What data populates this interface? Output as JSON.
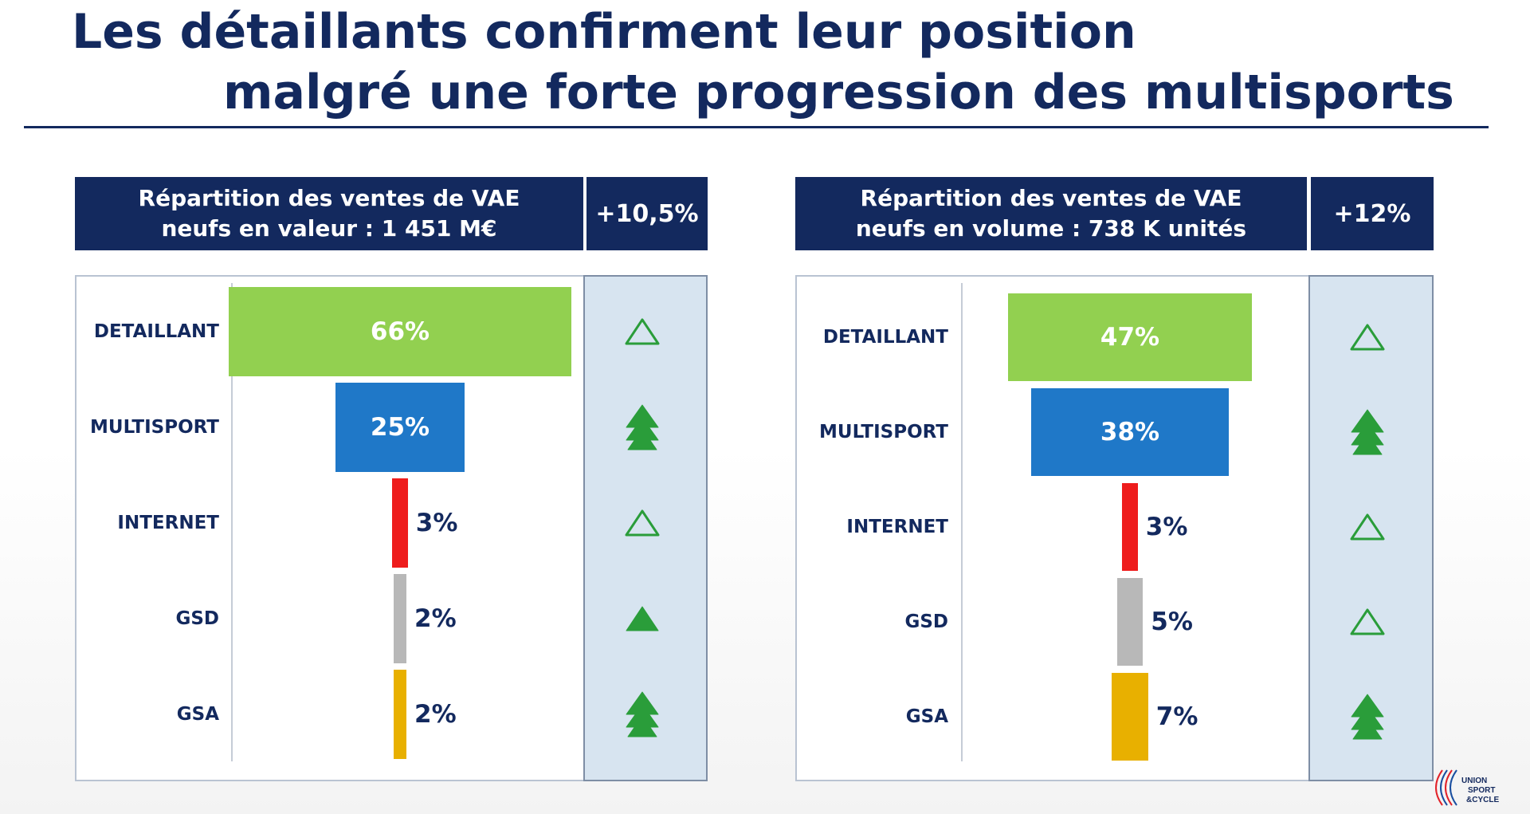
{
  "title": {
    "line1": "Les détaillants confirment leur position",
    "line2": "malgré une forte progression des multisports"
  },
  "panels": [
    {
      "header": "Répartition des ventes de VAE\nneufs en valeur : 1 451 M€",
      "growth": "+10,5%"
    },
    {
      "header": "Répartition des ventes de VAE\nneufs en volume : 738 K unités",
      "growth": "+12%"
    }
  ],
  "logo_text": "UNION SPORT & CYCLE",
  "chart_data": [
    {
      "type": "bar",
      "orientation": "horizontal-centered",
      "title": "Répartition des ventes de VAE neufs en valeur : 1 451 M€",
      "growth": "+10,5%",
      "categories": [
        "DETAILLANT",
        "MULTISPORT",
        "INTERNET",
        "GSD",
        "GSA"
      ],
      "values": [
        66,
        25,
        3,
        2,
        2
      ],
      "labels": [
        "66%",
        "25%",
        "3%",
        "2%",
        "2%"
      ],
      "colors": [
        "#92d050",
        "#1f78c8",
        "#ee1c1c",
        "#b8b8b8",
        "#e8b000"
      ],
      "trend": [
        "up-outline",
        "up-strong",
        "up-outline",
        "up-filled",
        "up-strong"
      ],
      "trend_color": "#2a9d3a",
      "unit": "%"
    },
    {
      "type": "bar",
      "orientation": "horizontal-centered",
      "title": "Répartition des ventes de VAE neufs en volume : 738 K unités",
      "growth": "+12%",
      "categories": [
        "DETAILLANT",
        "MULTISPORT",
        "INTERNET",
        "GSD",
        "GSA"
      ],
      "values": [
        47,
        38,
        3,
        5,
        7
      ],
      "labels": [
        "47%",
        "38%",
        "3%",
        "5%",
        "7%"
      ],
      "colors": [
        "#92d050",
        "#1f78c8",
        "#ee1c1c",
        "#b8b8b8",
        "#e8b000"
      ],
      "trend": [
        "up-outline",
        "up-strong",
        "up-outline",
        "up-outline",
        "up-strong"
      ],
      "trend_color": "#2a9d3a",
      "unit": "%"
    }
  ]
}
